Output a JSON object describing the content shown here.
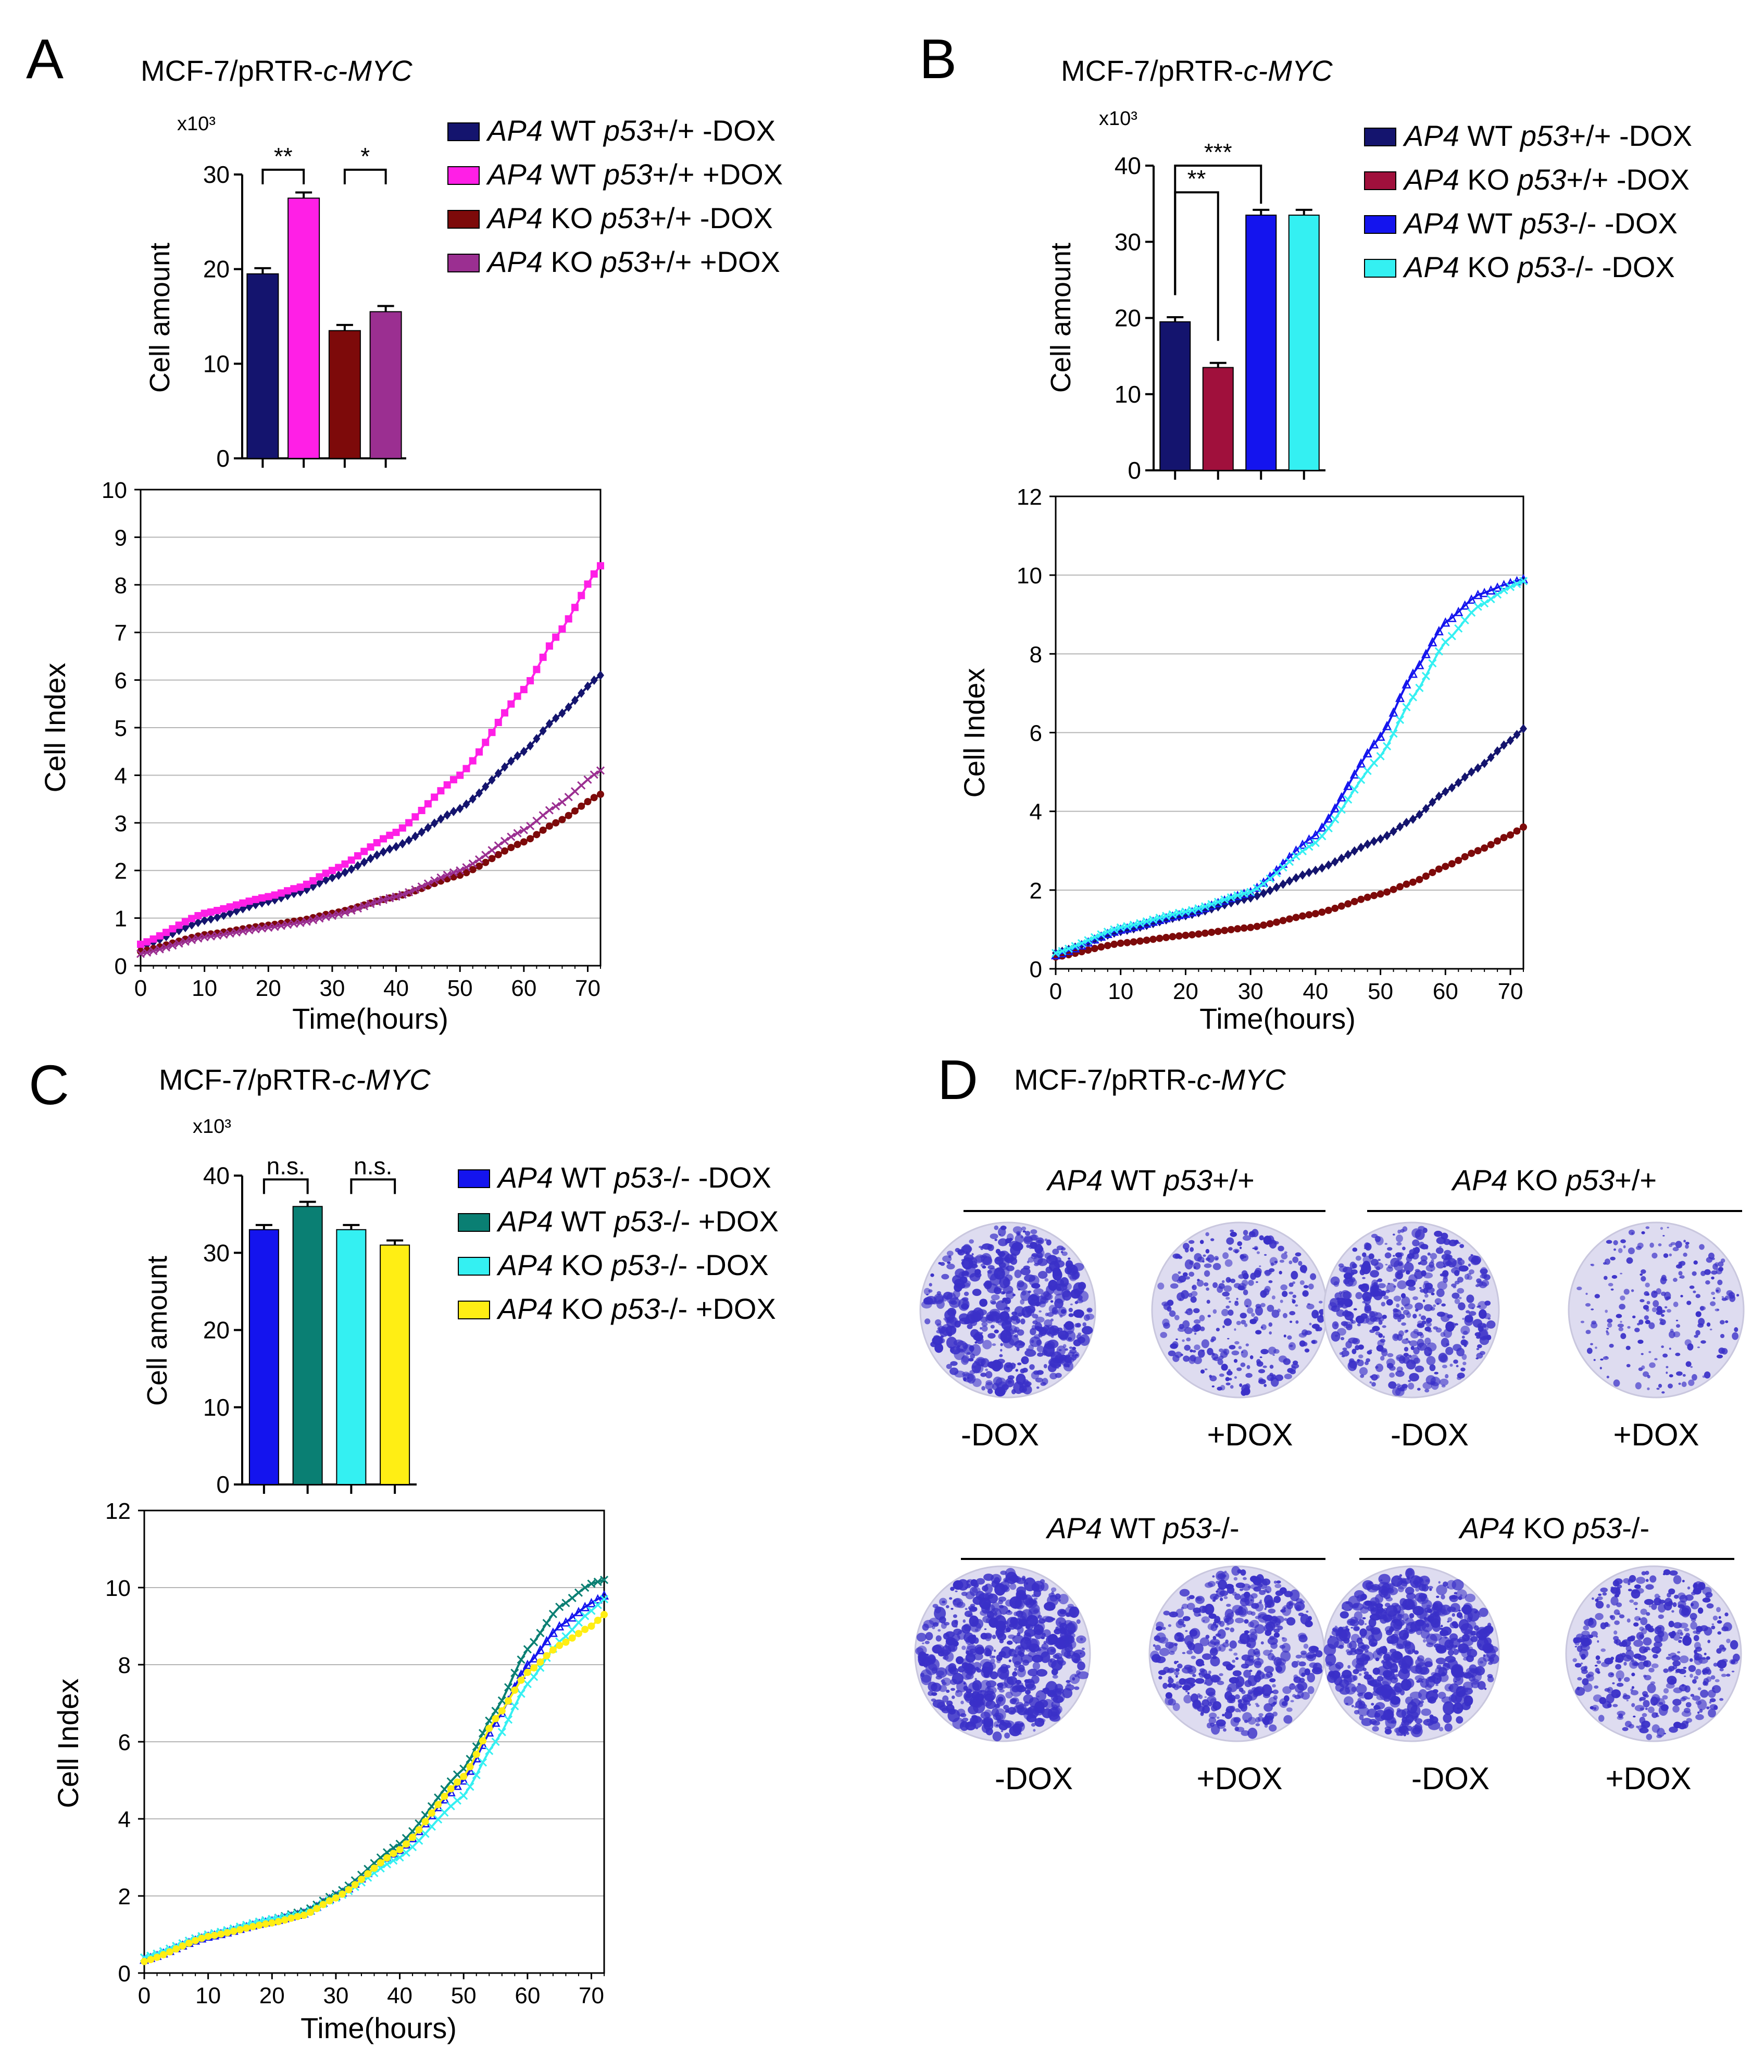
{
  "panels": {
    "A": {
      "letter": "A",
      "title_prefix": "MCF-7/pRTR-",
      "title_italic": "c-MYC"
    },
    "B": {
      "letter": "B",
      "title_prefix": "MCF-7/pRTR-",
      "title_italic": "c-MYC"
    },
    "C": {
      "letter": "C",
      "title_prefix": "MCF-7/pRTR-",
      "title_italic": "c-MYC"
    },
    "D": {
      "letter": "D",
      "title_prefix": "MCF-7/pRTR-",
      "title_italic": "c-MYC"
    }
  },
  "colors": {
    "navy": "#14146e",
    "magenta": "#ff1fe6",
    "darkred": "#7d0a0a",
    "purple": "#9b2f91",
    "crimson": "#a0103c",
    "blue": "#1414ee",
    "cyan": "#34f0f2",
    "teal": "#0a7f73",
    "yellow": "#ffee14",
    "colony": "#3a30c8",
    "plate_bg": "#dedcf0"
  },
  "chart_data": [
    {
      "id": "A_bar",
      "type": "bar",
      "title": "",
      "multiplier": "x10³",
      "xlabel": "",
      "ylabel": "Cell amount",
      "ylim": [
        0,
        30
      ],
      "yticks": [
        0,
        10,
        20,
        30
      ],
      "categories": [
        "AP4 WT p53+/+ -DOX",
        "AP4 WT p53+/+ +DOX",
        "AP4 KO p53+/+ -DOX",
        "AP4 KO p53+/+ +DOX"
      ],
      "values": [
        19.5,
        27.5,
        13.5,
        15.5
      ],
      "errors": [
        0.6,
        0.6,
        0.6,
        0.6
      ],
      "colors": [
        "#14146e",
        "#ff1fe6",
        "#7d0a0a",
        "#9b2f91"
      ],
      "significance": [
        {
          "from": 0,
          "to": 1,
          "label": "**"
        },
        {
          "from": 2,
          "to": 3,
          "label": "*"
        }
      ],
      "legend": [
        {
          "italic1": "AP4",
          "plain1": " WT ",
          "italic2": "p53",
          "plain2": "+/+ -DOX",
          "color": "#14146e"
        },
        {
          "italic1": "AP4",
          "plain1": " WT ",
          "italic2": "p53",
          "plain2": "+/+ +DOX",
          "color": "#ff1fe6"
        },
        {
          "italic1": "AP4",
          "plain1": " KO ",
          "italic2": "p53",
          "plain2": "+/+ -DOX",
          "color": "#7d0a0a"
        },
        {
          "italic1": "AP4",
          "plain1": " KO ",
          "italic2": "p53",
          "plain2": "+/+ +DOX",
          "color": "#9b2f91"
        }
      ]
    },
    {
      "id": "A_line",
      "type": "line",
      "xlabel": "Time(hours)",
      "ylabel": "Cell Index",
      "xlim": [
        0,
        72
      ],
      "ylim": [
        0,
        10
      ],
      "xticks": [
        0,
        10,
        20,
        30,
        40,
        50,
        60,
        70
      ],
      "yticks": [
        0,
        1,
        2,
        3,
        4,
        5,
        6,
        7,
        8,
        9,
        10
      ],
      "grid": true,
      "x": [
        0,
        10,
        20,
        25,
        30,
        40,
        50,
        60,
        65,
        72
      ],
      "series": [
        {
          "name": "AP4 WT p53+/+ -DOX",
          "color": "#14146e",
          "marker": "diamond",
          "values": [
            0.4,
            0.95,
            1.35,
            1.55,
            1.85,
            2.5,
            3.3,
            4.5,
            5.2,
            6.1
          ]
        },
        {
          "name": "AP4 WT p53+/+ +DOX",
          "color": "#ff1fe6",
          "marker": "square",
          "values": [
            0.45,
            1.1,
            1.45,
            1.65,
            2.0,
            2.8,
            4.0,
            5.8,
            6.9,
            8.4
          ]
        },
        {
          "name": "AP4 KO p53+/+ -DOX",
          "color": "#7d0a0a",
          "marker": "circle",
          "values": [
            0.3,
            0.65,
            0.85,
            0.95,
            1.1,
            1.45,
            1.9,
            2.6,
            3.0,
            3.6
          ]
        },
        {
          "name": "AP4 KO p53+/+ +DOX",
          "color": "#9b2f91",
          "marker": "cross",
          "values": [
            0.25,
            0.6,
            0.8,
            0.9,
            1.05,
            1.45,
            2.0,
            2.85,
            3.35,
            4.1
          ]
        }
      ]
    },
    {
      "id": "B_bar",
      "type": "bar",
      "title": "",
      "multiplier": "x10³",
      "xlabel": "",
      "ylabel": "Cell amount",
      "ylim": [
        0,
        40
      ],
      "yticks": [
        0,
        10,
        20,
        30,
        40
      ],
      "categories": [
        "AP4 WT p53+/+ -DOX",
        "AP4 KO p53+/+ -DOX",
        "AP4 WT p53-/- -DOX",
        "AP4 KO p53-/- -DOX"
      ],
      "values": [
        19.5,
        13.5,
        33.5,
        33.5
      ],
      "errors": [
        0.6,
        0.6,
        0.7,
        0.7
      ],
      "colors": [
        "#14146e",
        "#a0103c",
        "#1414ee",
        "#34f0f2"
      ],
      "significance": [
        {
          "from": 0,
          "to": 1,
          "label": "**"
        },
        {
          "from": 0,
          "to": 2,
          "label": "***"
        }
      ],
      "legend": [
        {
          "italic1": "AP4",
          "plain1": " WT ",
          "italic2": "p53",
          "plain2": "+/+ -DOX",
          "color": "#14146e"
        },
        {
          "italic1": "AP4",
          "plain1": " KO ",
          "italic2": "p53",
          "plain2": "+/+ -DOX",
          "color": "#a0103c"
        },
        {
          "italic1": "AP4",
          "plain1": " WT ",
          "italic2": "p53",
          "plain2": "-/- -DOX",
          "color": "#1414ee"
        },
        {
          "italic1": "AP4",
          "plain1": " KO ",
          "italic2": "p53",
          "plain2": "-/- -DOX",
          "color": "#34f0f2"
        }
      ]
    },
    {
      "id": "B_line",
      "type": "line",
      "xlabel": "Time(hours)",
      "ylabel": "Cell Index",
      "xlim": [
        0,
        72
      ],
      "ylim": [
        0,
        12
      ],
      "xticks": [
        0,
        10,
        20,
        30,
        40,
        50,
        60,
        70
      ],
      "yticks": [
        0,
        2,
        4,
        6,
        8,
        10,
        12
      ],
      "grid": true,
      "x": [
        0,
        10,
        20,
        30,
        40,
        50,
        55,
        60,
        65,
        70,
        72
      ],
      "series": [
        {
          "name": "AP4 WT p53+/+ -DOX",
          "color": "#14146e",
          "marker": "diamond",
          "values": [
            0.4,
            0.95,
            1.35,
            1.8,
            2.5,
            3.3,
            3.8,
            4.5,
            5.1,
            5.8,
            6.1
          ]
        },
        {
          "name": "AP4 KO p53+/+ -DOX",
          "color": "#7d0a0a",
          "marker": "circle",
          "values": [
            0.3,
            0.65,
            0.85,
            1.05,
            1.4,
            1.9,
            2.2,
            2.6,
            3.0,
            3.4,
            3.6
          ]
        },
        {
          "name": "AP4 WT p53-/- -DOX",
          "color": "#1414ee",
          "marker": "triangle",
          "values": [
            0.35,
            1.0,
            1.4,
            1.95,
            3.4,
            5.9,
            7.5,
            8.8,
            9.5,
            9.8,
            9.9
          ]
        },
        {
          "name": "AP4 KO p53-/- -DOX",
          "color": "#34f0f2",
          "marker": "cross",
          "values": [
            0.4,
            1.05,
            1.45,
            1.95,
            3.2,
            5.4,
            6.9,
            8.3,
            9.2,
            9.7,
            9.85
          ]
        }
      ]
    },
    {
      "id": "C_bar",
      "type": "bar",
      "title": "",
      "multiplier": "x10³",
      "xlabel": "",
      "ylabel": "Cell amount",
      "ylim": [
        0,
        40
      ],
      "yticks": [
        0,
        10,
        20,
        30,
        40
      ],
      "categories": [
        "AP4 WT p53-/- -DOX",
        "AP4 WT p53-/- +DOX",
        "AP4 KO p53-/- -DOX",
        "AP4 KO p53-/- +DOX"
      ],
      "values": [
        33,
        36,
        33,
        31
      ],
      "errors": [
        0.6,
        0.6,
        0.6,
        0.6
      ],
      "colors": [
        "#1414ee",
        "#0a7f73",
        "#34f0f2",
        "#ffee14"
      ],
      "significance": [
        {
          "from": 0,
          "to": 1,
          "label": "n.s."
        },
        {
          "from": 2,
          "to": 3,
          "label": "n.s."
        }
      ],
      "legend": [
        {
          "italic1": "AP4",
          "plain1": " WT ",
          "italic2": "p53",
          "plain2": "-/- -DOX",
          "color": "#1414ee"
        },
        {
          "italic1": "AP4",
          "plain1": " WT ",
          "italic2": "p53",
          "plain2": "-/- +DOX",
          "color": "#0a7f73"
        },
        {
          "italic1": "AP4",
          "plain1": " KO ",
          "italic2": "p53",
          "plain2": "-/- -DOX",
          "color": "#34f0f2"
        },
        {
          "italic1": "AP4",
          "plain1": " KO ",
          "italic2": "p53",
          "plain2": "-/- +DOX",
          "color": "#ffee14"
        }
      ]
    },
    {
      "id": "C_line",
      "type": "line",
      "xlabel": "Time(hours)",
      "ylabel": "Cell Index",
      "xlim": [
        0,
        72
      ],
      "ylim": [
        0,
        12
      ],
      "xticks": [
        0,
        10,
        20,
        30,
        40,
        50,
        60,
        70
      ],
      "yticks": [
        0,
        2,
        4,
        6,
        8,
        10,
        12
      ],
      "grid": true,
      "x": [
        0,
        10,
        20,
        25,
        30,
        40,
        50,
        55,
        60,
        65,
        70,
        72
      ],
      "series": [
        {
          "name": "AP4 WT p53-/- -DOX",
          "color": "#1414ee",
          "marker": "triangle",
          "values": [
            0.35,
            0.95,
            1.35,
            1.55,
            2.0,
            3.2,
            5.0,
            6.5,
            8.0,
            9.0,
            9.6,
            9.8
          ]
        },
        {
          "name": "AP4 WT p53-/- +DOX",
          "color": "#0a7f73",
          "marker": "cross",
          "values": [
            0.4,
            1.0,
            1.4,
            1.6,
            2.05,
            3.35,
            5.3,
            6.8,
            8.4,
            9.5,
            10.1,
            10.2
          ]
        },
        {
          "name": "AP4 KO p53-/- -DOX",
          "color": "#34f0f2",
          "marker": "cross",
          "values": [
            0.4,
            1.0,
            1.4,
            1.55,
            1.95,
            3.0,
            4.6,
            6.0,
            7.5,
            8.6,
            9.4,
            9.7
          ]
        },
        {
          "name": "AP4 KO p53-/- +DOX",
          "color": "#ffee14",
          "marker": "circle",
          "values": [
            0.3,
            0.95,
            1.3,
            1.5,
            1.95,
            3.2,
            5.1,
            6.6,
            7.8,
            8.5,
            9.0,
            9.3
          ]
        }
      ]
    }
  ],
  "colony_panel": {
    "groups": [
      {
        "italic1": "AP4",
        "plain1": " WT ",
        "italic2": "p53",
        "plain2": "+/+",
        "labels": [
          "-DOX",
          "+DOX"
        ],
        "density": [
          0.9,
          0.45
        ]
      },
      {
        "italic1": "AP4",
        "plain1": " KO ",
        "italic2": "p53",
        "plain2": "+/+",
        "labels": [
          "-DOX",
          "+DOX"
        ],
        "density": [
          0.7,
          0.25
        ]
      },
      {
        "italic1": "AP4",
        "plain1": " WT ",
        "italic2": "p53",
        "plain2": "-/-",
        "labels": [
          "-DOX",
          "+DOX"
        ],
        "density": [
          1.0,
          0.75
        ]
      },
      {
        "italic1": "AP4",
        "plain1": " KO ",
        "italic2": "p53",
        "plain2": "-/-",
        "labels": [
          "-DOX",
          "+DOX"
        ],
        "density": [
          1.0,
          0.65
        ]
      }
    ]
  }
}
